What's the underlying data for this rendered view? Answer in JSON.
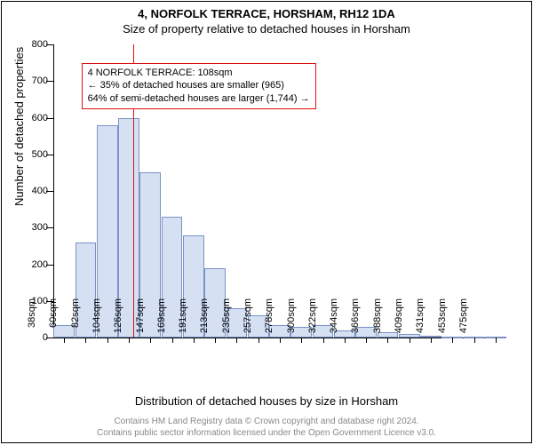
{
  "titles": {
    "line1": "4, NORFOLK TERRACE, HORSHAM, RH12 1DA",
    "line2": "Size of property relative to detached houses in Horsham"
  },
  "chart": {
    "type": "bar",
    "ylabel": "Number of detached properties",
    "xlabel": "Distribution of detached houses by size in Horsham",
    "ylim": [
      0,
      800
    ],
    "ytick_step": 100,
    "yticks": [
      0,
      100,
      200,
      300,
      400,
      500,
      600,
      700,
      800
    ],
    "categories": [
      "38sqm",
      "60sqm",
      "82sqm",
      "104sqm",
      "126sqm",
      "147sqm",
      "169sqm",
      "191sqm",
      "213sqm",
      "235sqm",
      "257sqm",
      "278sqm",
      "300sqm",
      "322sqm",
      "344sqm",
      "366sqm",
      "388sqm",
      "409sqm",
      "431sqm",
      "453sqm",
      "475sqm"
    ],
    "values": [
      35,
      260,
      580,
      600,
      450,
      330,
      280,
      190,
      80,
      60,
      35,
      28,
      35,
      20,
      30,
      15,
      10,
      5,
      3,
      2,
      2
    ],
    "bar_fill": "#d5e0f2",
    "bar_border": "#7a92c4",
    "bar_width_ratio": 0.98,
    "reference_line": {
      "x_value": 108,
      "color": "#d11"
    },
    "annotation": {
      "lines": [
        "4 NORFOLK TERRACE: 108sqm",
        "← 35% of detached houses are smaller (965)",
        "64% of semi-detached houses are larger (1,744) →"
      ],
      "border_color": "#d11",
      "x_left_category_index": 1,
      "y_top_value": 750
    },
    "background_color": "#ffffff",
    "axis_color": "#000000",
    "tick_fontsize": 11,
    "label_fontsize": 13
  },
  "footer": {
    "line1": "Contains HM Land Registry data © Crown copyright and database right 2024.",
    "line2": "Contains public sector information licensed under the Open Government Licence v3.0."
  }
}
